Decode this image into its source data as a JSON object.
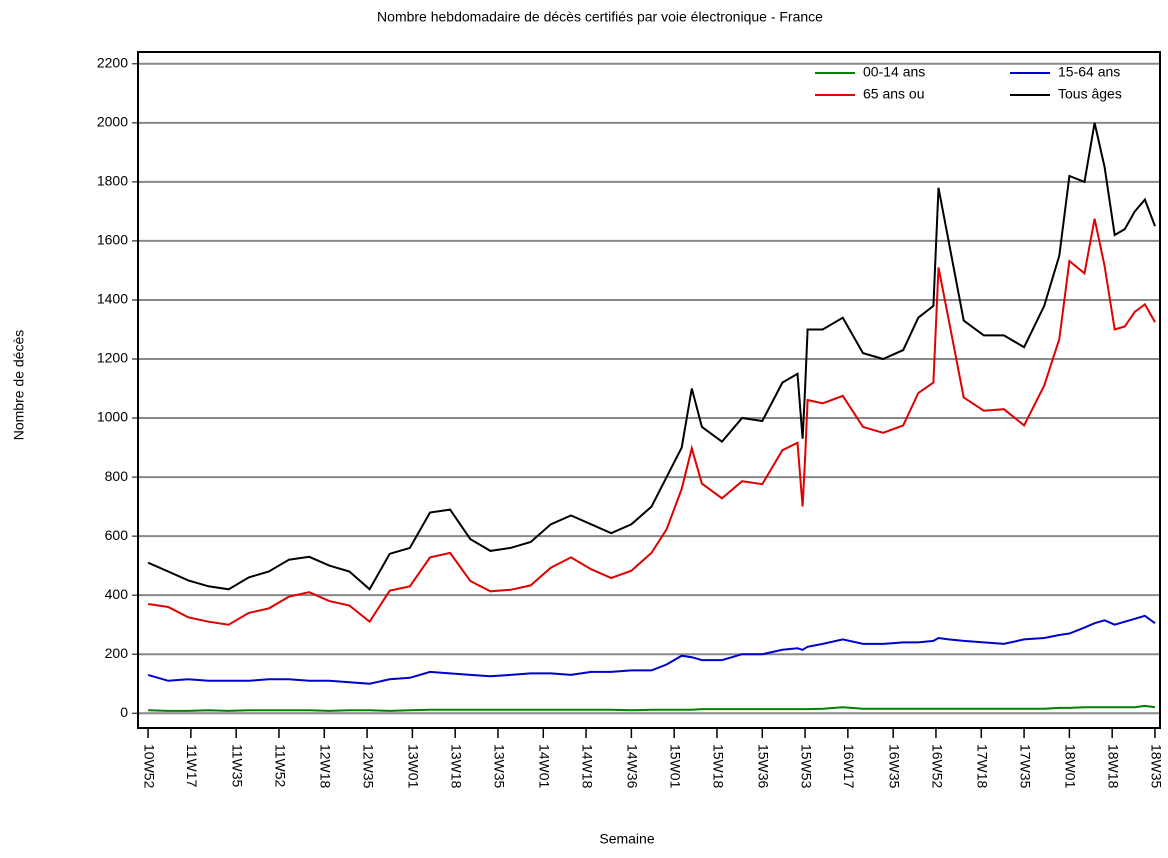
{
  "chart_data": {
    "type": "line",
    "title": "Nombre hebdomadaire de décès certifiés par voie électronique - France",
    "x_label": "Semaine",
    "y_label": "Nombre de décès",
    "x": [
      0,
      8,
      16,
      24,
      32,
      40,
      48,
      56,
      64,
      72,
      80,
      88,
      96,
      104,
      112,
      120,
      128,
      136,
      144,
      152,
      160,
      168,
      176,
      184,
      192,
      200,
      206,
      212,
      216,
      220,
      228,
      236,
      244,
      252,
      258,
      260,
      261,
      262,
      268,
      276,
      284,
      292,
      300,
      306,
      312,
      314,
      318,
      324,
      332,
      340,
      348,
      356,
      362,
      366,
      372,
      376,
      380,
      384,
      388,
      392,
      396,
      400
    ],
    "series": [
      {
        "name": "00-14 ans",
        "color": "#008000",
        "values": [
          10,
          8,
          8,
          10,
          8,
          10,
          10,
          10,
          10,
          8,
          10,
          10,
          8,
          10,
          12,
          12,
          12,
          12,
          12,
          12,
          12,
          12,
          12,
          12,
          10,
          12,
          12,
          12,
          12,
          14,
          14,
          14,
          14,
          14,
          14,
          14,
          14,
          14,
          15,
          20,
          15,
          15,
          15,
          15,
          15,
          15,
          15,
          15,
          15,
          15,
          15,
          15,
          18,
          18,
          20,
          20,
          20,
          20,
          20,
          20,
          25,
          20
        ]
      },
      {
        "name": "15-64 ans",
        "color": "#0000cc",
        "values": [
          130,
          110,
          115,
          110,
          110,
          110,
          115,
          115,
          110,
          110,
          105,
          100,
          115,
          120,
          140,
          135,
          130,
          125,
          130,
          135,
          135,
          130,
          140,
          140,
          145,
          145,
          165,
          195,
          190,
          180,
          180,
          200,
          200,
          215,
          220,
          215,
          220,
          225,
          235,
          250,
          235,
          235,
          240,
          240,
          245,
          255,
          250,
          245,
          240,
          235,
          250,
          255,
          265,
          270,
          290,
          305,
          315,
          300,
          310,
          320,
          330,
          305
        ]
      },
      {
        "name": "65 ans ou",
        "color": "#e00000",
        "values": [
          370,
          360,
          325,
          310,
          300,
          340,
          355,
          395,
          410,
          380,
          365,
          310,
          415,
          430,
          528,
          543,
          448,
          413,
          418,
          433,
          493,
          528,
          488,
          458,
          483,
          543,
          623,
          760,
          898,
          778,
          728,
          786,
          776,
          891,
          916,
          700,
          865,
          1061,
          1050,
          1075,
          970,
          950,
          975,
          1085,
          1120,
          1510,
          1335,
          1070,
          1025,
          1030,
          975,
          1110,
          1267,
          1532,
          1490,
          1675,
          1515,
          1300,
          1310,
          1360,
          1385,
          1325
        ]
      },
      {
        "name": "Tous âges",
        "color": "#000000",
        "values": [
          510,
          480,
          450,
          430,
          420,
          460,
          480,
          520,
          530,
          500,
          480,
          420,
          540,
          560,
          680,
          690,
          590,
          550,
          560,
          580,
          640,
          670,
          640,
          610,
          640,
          700,
          800,
          900,
          1100,
          970,
          920,
          1000,
          990,
          1120,
          1150,
          930,
          1100,
          1300,
          1300,
          1340,
          1220,
          1200,
          1230,
          1340,
          1380,
          1780,
          1600,
          1330,
          1280,
          1280,
          1240,
          1380,
          1550,
          1820,
          1800,
          2000,
          1850,
          1620,
          1640,
          1700,
          1740,
          1650
        ]
      }
    ],
    "xlim": [
      -4,
      402
    ],
    "xticks": [
      {
        "value": 0,
        "label": "10W52"
      },
      {
        "value": 17,
        "label": "11W17"
      },
      {
        "value": 35,
        "label": "11W35"
      },
      {
        "value": 52,
        "label": "11W52"
      },
      {
        "value": 70,
        "label": "12W18"
      },
      {
        "value": 87,
        "label": "12W35"
      },
      {
        "value": 105,
        "label": "13W01"
      },
      {
        "value": 122,
        "label": "13W18"
      },
      {
        "value": 139,
        "label": "13W35"
      },
      {
        "value": 157,
        "label": "14W01"
      },
      {
        "value": 174,
        "label": "14W18"
      },
      {
        "value": 192,
        "label": "14W36"
      },
      {
        "value": 209,
        "label": "15W01"
      },
      {
        "value": 226,
        "label": "15W18"
      },
      {
        "value": 244,
        "label": "15W36"
      },
      {
        "value": 261,
        "label": "15W53"
      },
      {
        "value": 278,
        "label": "16W17"
      },
      {
        "value": 296,
        "label": "16W35"
      },
      {
        "value": 313,
        "label": "16W52"
      },
      {
        "value": 331,
        "label": "17W18"
      },
      {
        "value": 348,
        "label": "17W35"
      },
      {
        "value": 366,
        "label": "18W01"
      },
      {
        "value": 383,
        "label": "18W18"
      },
      {
        "value": 400,
        "label": "18W35"
      }
    ],
    "ylim": [
      -50,
      2240
    ],
    "yticks": [
      0,
      200,
      400,
      600,
      800,
      1000,
      1200,
      1400,
      1600,
      1800,
      2000,
      2200
    ],
    "grid": true,
    "legend": "top-right"
  }
}
